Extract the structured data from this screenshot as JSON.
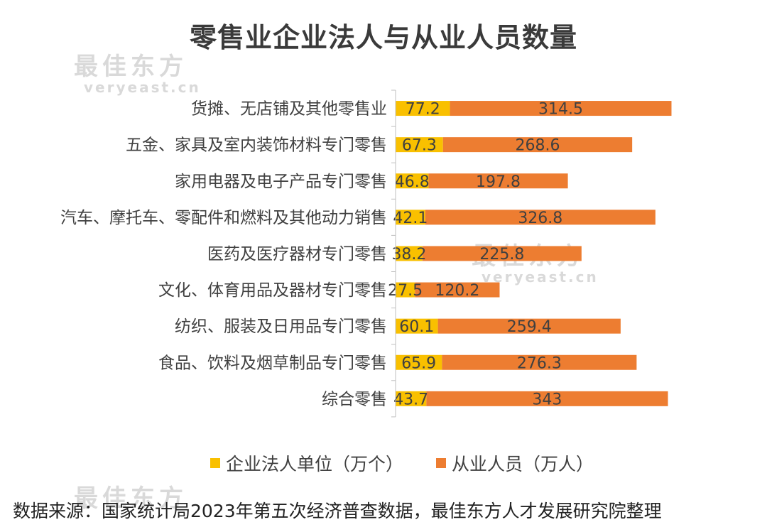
{
  "title": "零售业企业法人与从业人员数量",
  "source": "数据来源：国家统计局2023年第五次经济普查数据，最佳东方人才发展研究院整理",
  "watermark": {
    "brand": "最佳东方",
    "url": "veryeast.cn"
  },
  "colors": {
    "series_1": "#f9c000",
    "series_2": "#ed7d31",
    "axis": "#bfbfbf"
  },
  "chart_data": {
    "type": "bar",
    "orientation": "horizontal",
    "stacked": true,
    "title": "零售业企业法人与从业人员数量",
    "categories": [
      "货摊、无店铺及其他零售业",
      "五金、家具及室内装饰材料专门零售",
      "家用电器及电子产品专门零售",
      "汽车、摩托车、零配件和燃料及其他动力销售",
      "医药及医疗器材专门零售",
      "文化、体育用品及器材专门零售",
      "纺织、服装及日用品专门零售",
      "食品、饮料及烟草制品专门零售",
      "综合零售"
    ],
    "series": [
      {
        "name": "企业法人单位（万个）",
        "values": [
          77.2,
          67.3,
          46.8,
          42.1,
          38.2,
          27.5,
          60.1,
          65.9,
          43.7
        ]
      },
      {
        "name": "从业人员（万人）",
        "values": [
          314.5,
          268.6,
          197.8,
          326.8,
          225.8,
          120.2,
          259.4,
          276.3,
          343
        ]
      }
    ],
    "legend_position": "bottom",
    "grid": false
  }
}
